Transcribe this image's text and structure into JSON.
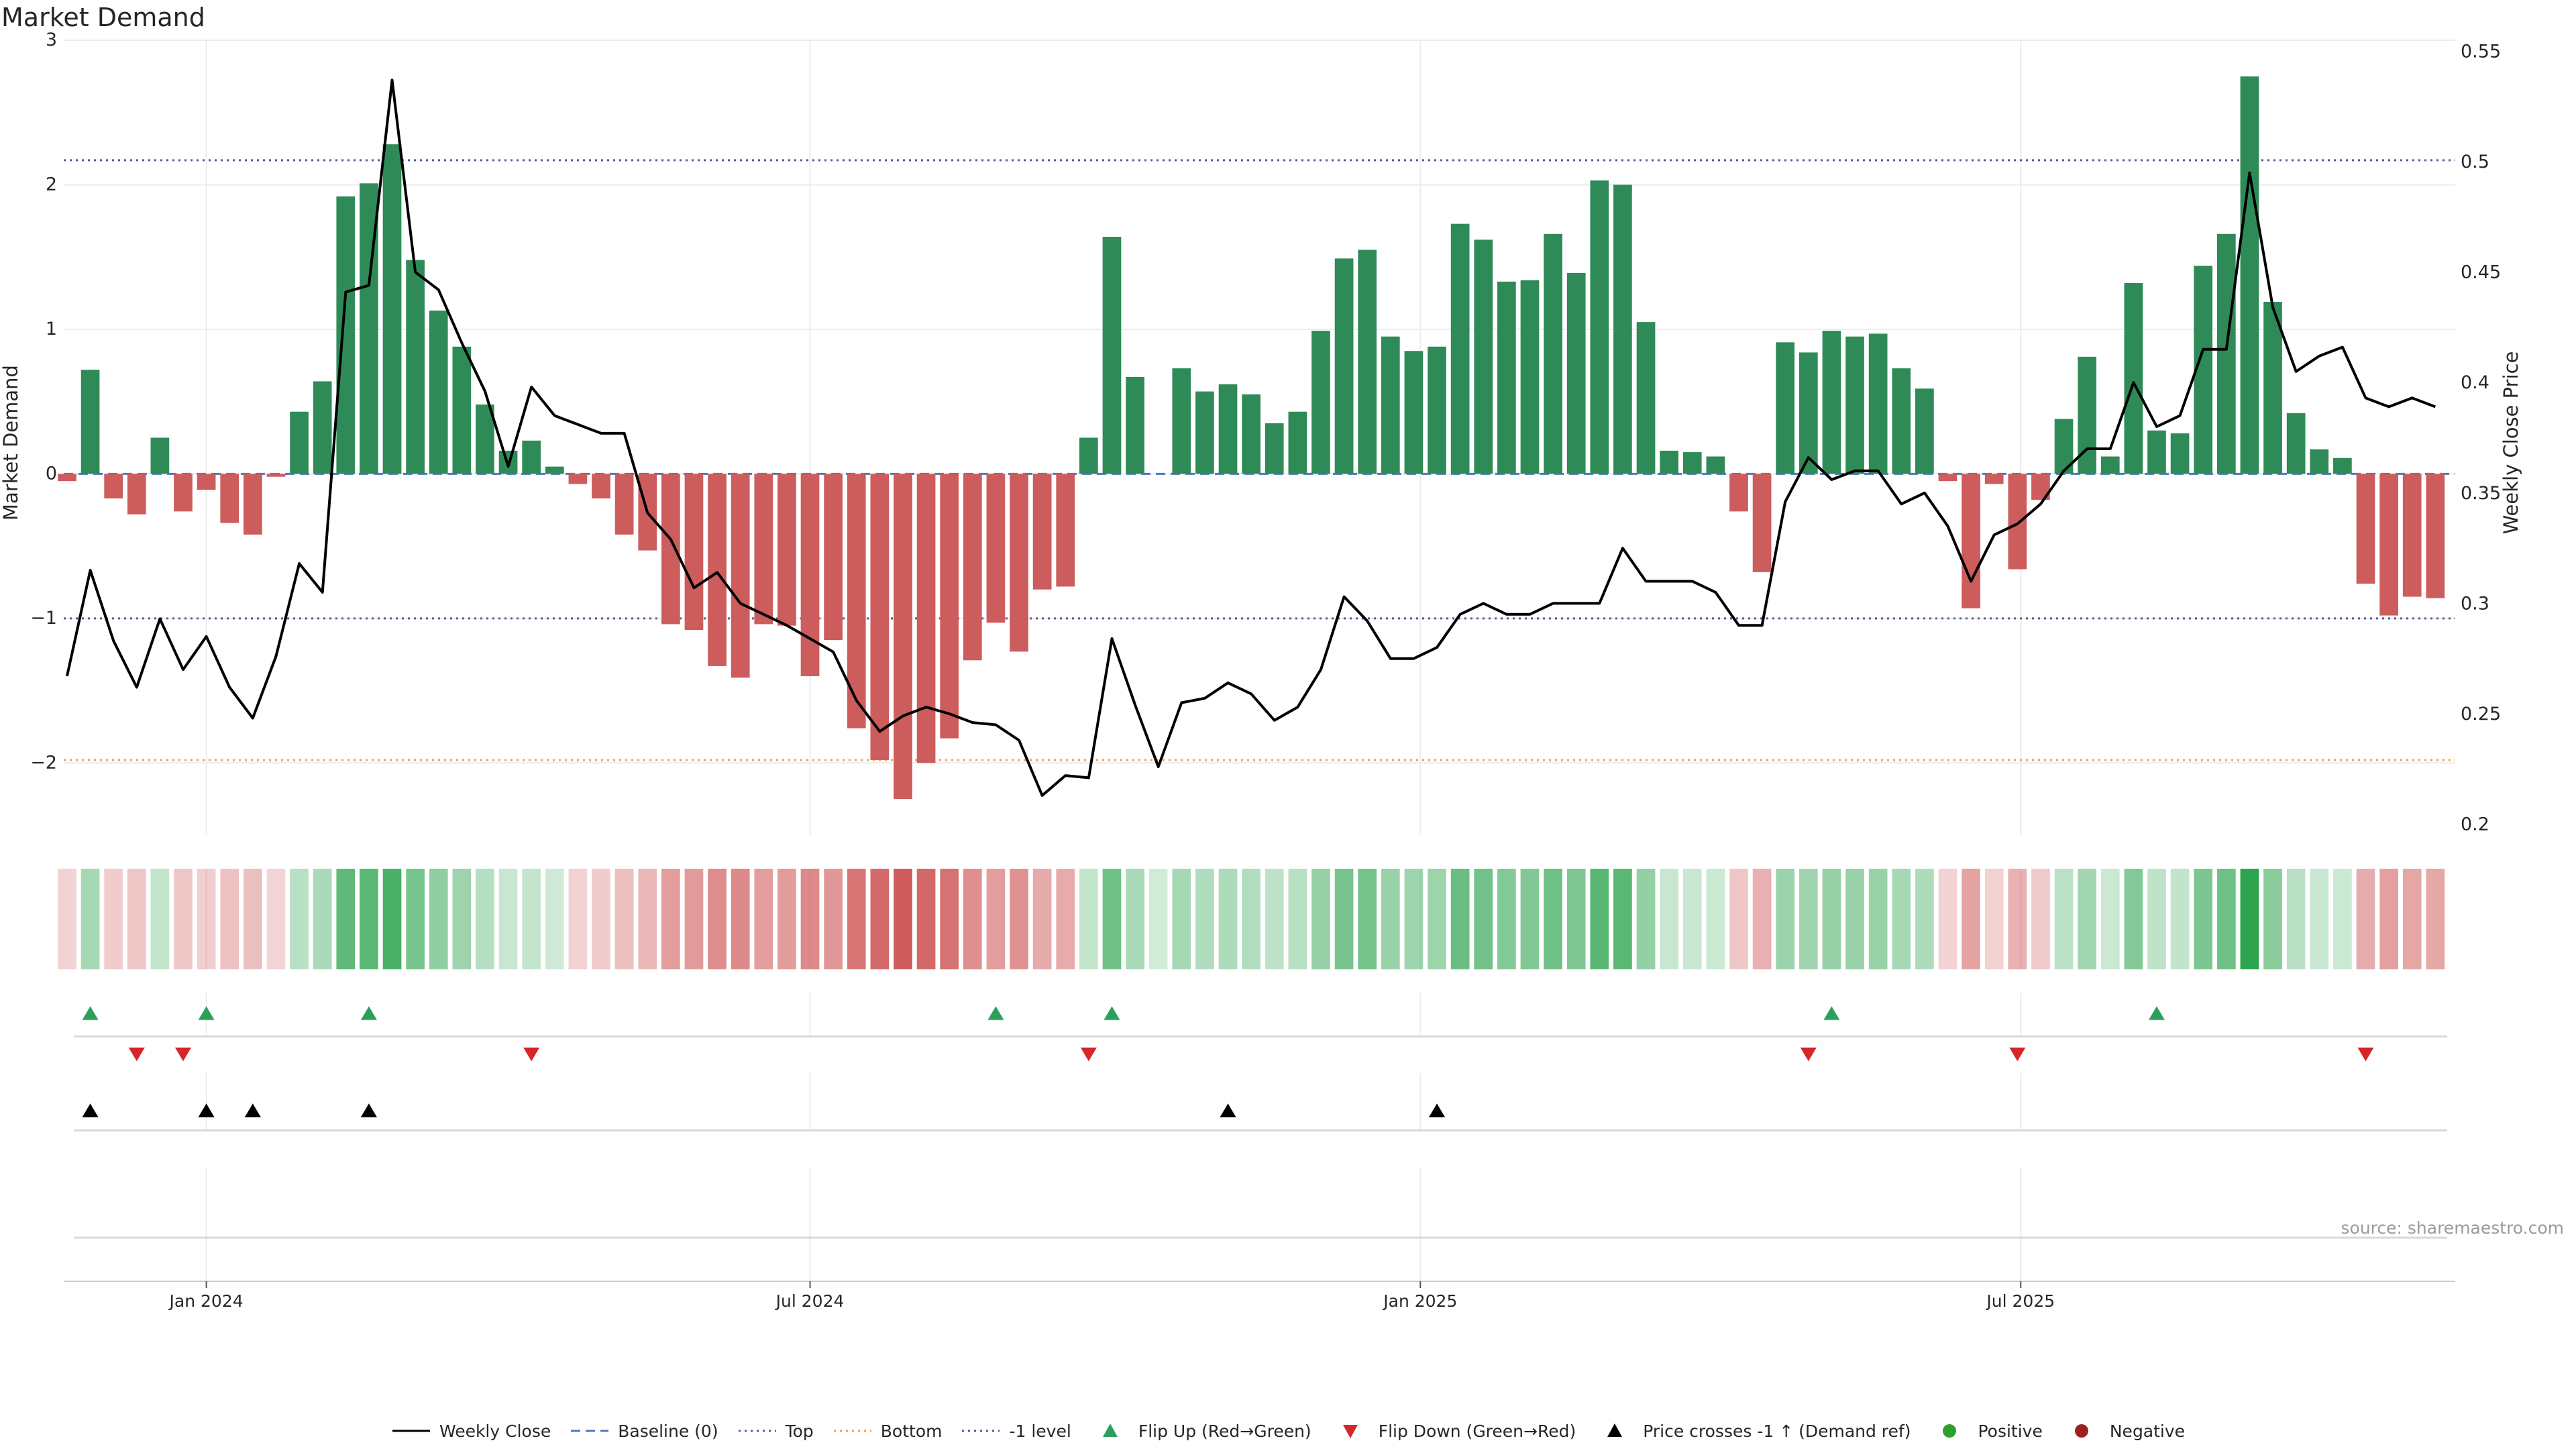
{
  "chart_data": {
    "type": "bar",
    "title": "Market Demand",
    "ylabel": "Market Demand",
    "y2label": "Weekly Close Price",
    "ylim": [
      -2.5,
      3
    ],
    "y2lim": [
      0.195,
      0.555
    ],
    "yticks": [
      -2,
      -1,
      0,
      1,
      2,
      3
    ],
    "y2ticks": [
      0.2,
      0.25,
      0.3,
      0.35,
      0.4,
      0.45,
      0.5,
      0.55
    ],
    "xlim": [
      "2023-11-19",
      "2025-11-09"
    ],
    "xticks": [
      {
        "date": "2024-01-01",
        "label": "Jan 2024"
      },
      {
        "date": "2024-07-01",
        "label": "Jul 2024"
      },
      {
        "date": "2025-01-01",
        "label": "Jan 2025"
      },
      {
        "date": "2025-07-01",
        "label": "Jul 2025"
      }
    ],
    "start_date": "2023-11-20",
    "levels": {
      "top": 2.17,
      "bottom": -1.98,
      "minus_one": -1.0,
      "baseline": 0
    },
    "demand": [
      -0.05,
      0.72,
      -0.17,
      -0.28,
      0.25,
      -0.26,
      -0.11,
      -0.34,
      -0.42,
      -0.02,
      0.43,
      0.64,
      1.92,
      2.01,
      2.28,
      1.48,
      1.13,
      0.88,
      0.48,
      0.16,
      0.23,
      0.05,
      -0.07,
      -0.17,
      -0.42,
      -0.53,
      -1.04,
      -1.08,
      -1.33,
      -1.41,
      -1.04,
      -1.05,
      -1.4,
      -1.15,
      -1.76,
      -1.98,
      -2.25,
      -2.0,
      -1.83,
      -1.29,
      -1.03,
      -1.23,
      -0.8,
      -0.78,
      0.25,
      1.64,
      0.67,
      0.0,
      0.73,
      0.57,
      0.62,
      0.55,
      0.35,
      0.43,
      0.99,
      1.49,
      1.55,
      0.95,
      0.85,
      0.88,
      1.73,
      1.62,
      1.33,
      1.34,
      1.66,
      1.39,
      2.03,
      2.0,
      1.05,
      0.16,
      0.15,
      0.12,
      -0.26,
      -0.68,
      0.91,
      0.84,
      0.99,
      0.95,
      0.97,
      0.73,
      0.59,
      -0.05,
      -0.93,
      -0.07,
      -0.66,
      -0.18,
      0.38,
      0.81,
      0.12,
      1.32,
      0.3,
      0.28,
      1.44,
      1.66,
      2.75,
      1.19,
      0.42,
      0.17,
      0.11,
      -0.76,
      -0.98,
      -0.85,
      -0.86
    ],
    "close": [
      0.267,
      0.315,
      0.283,
      0.262,
      0.293,
      0.27,
      0.285,
      0.262,
      0.248,
      0.276,
      0.318,
      0.305,
      0.441,
      0.444,
      0.537,
      0.45,
      0.442,
      0.418,
      0.396,
      0.362,
      0.398,
      0.385,
      0.381,
      0.377,
      0.377,
      0.341,
      0.329,
      0.307,
      0.314,
      0.3,
      0.295,
      0.29,
      0.284,
      0.278,
      0.256,
      0.242,
      0.249,
      0.253,
      0.25,
      0.246,
      0.245,
      0.238,
      0.213,
      0.222,
      0.221,
      0.284,
      0.254,
      0.226,
      0.255,
      0.257,
      0.264,
      0.259,
      0.247,
      0.253,
      0.27,
      0.303,
      0.292,
      0.275,
      0.275,
      0.28,
      0.295,
      0.3,
      0.295,
      0.295,
      0.3,
      0.3,
      0.3,
      0.325,
      0.31,
      0.31,
      0.31,
      0.305,
      0.29,
      0.29,
      0.346,
      0.366,
      0.356,
      0.36,
      0.36,
      0.345,
      0.35,
      0.335,
      0.31,
      0.331,
      0.336,
      0.345,
      0.36,
      0.37,
      0.37,
      0.4,
      0.38,
      0.385,
      0.415,
      0.415,
      0.495,
      0.434,
      0.405,
      0.412,
      0.416,
      0.393,
      0.389,
      0.393,
      0.389
    ],
    "flip_up": [
      "2023-11-27",
      "2024-01-01",
      "2024-02-19",
      "2024-08-26",
      "2024-09-30",
      "2025-05-05",
      "2025-08-11"
    ],
    "flip_down": [
      "2023-12-11",
      "2023-12-25",
      "2024-04-08",
      "2024-09-23",
      "2025-04-28",
      "2025-06-30",
      "2025-10-13"
    ],
    "price_cross": [
      "2023-11-27",
      "2024-01-01",
      "2024-01-15",
      "2024-02-19",
      "2024-11-04",
      "2025-01-06"
    ],
    "colors": {
      "positive": "#2e8b57",
      "negative": "#cd5c5c",
      "line": "#000000",
      "top_level": "#565a9a",
      "bottom_level": "#f0a050",
      "minus_one_level": "#565a9a",
      "baseline": "#4a7cc0",
      "flip_up": "#2ca05a",
      "flip_down": "#d62728",
      "positive_dot": "#2ca02c",
      "negative_dot": "#a02020"
    },
    "legend": {
      "placement": "bottom-center",
      "entries": [
        {
          "label": "Weekly Close",
          "marker": "line"
        },
        {
          "label": "Baseline (0)",
          "marker": "dash"
        },
        {
          "label": "Top",
          "marker": "dot-line"
        },
        {
          "label": "Bottom",
          "marker": "dot-line-orange"
        },
        {
          "label": "-1 level",
          "marker": "dot-line"
        },
        {
          "label": "Flip Up (Red→Green)",
          "marker": "triangle-up-green"
        },
        {
          "label": "Flip Down (Green→Red)",
          "marker": "triangle-down-red"
        },
        {
          "label": "Price crosses -1 ↑ (Demand ref)",
          "marker": "triangle-up-black"
        },
        {
          "label": "Positive",
          "marker": "circle-green"
        },
        {
          "label": "Negative",
          "marker": "circle-red"
        }
      ]
    },
    "source": "source: sharemaestro.com"
  }
}
